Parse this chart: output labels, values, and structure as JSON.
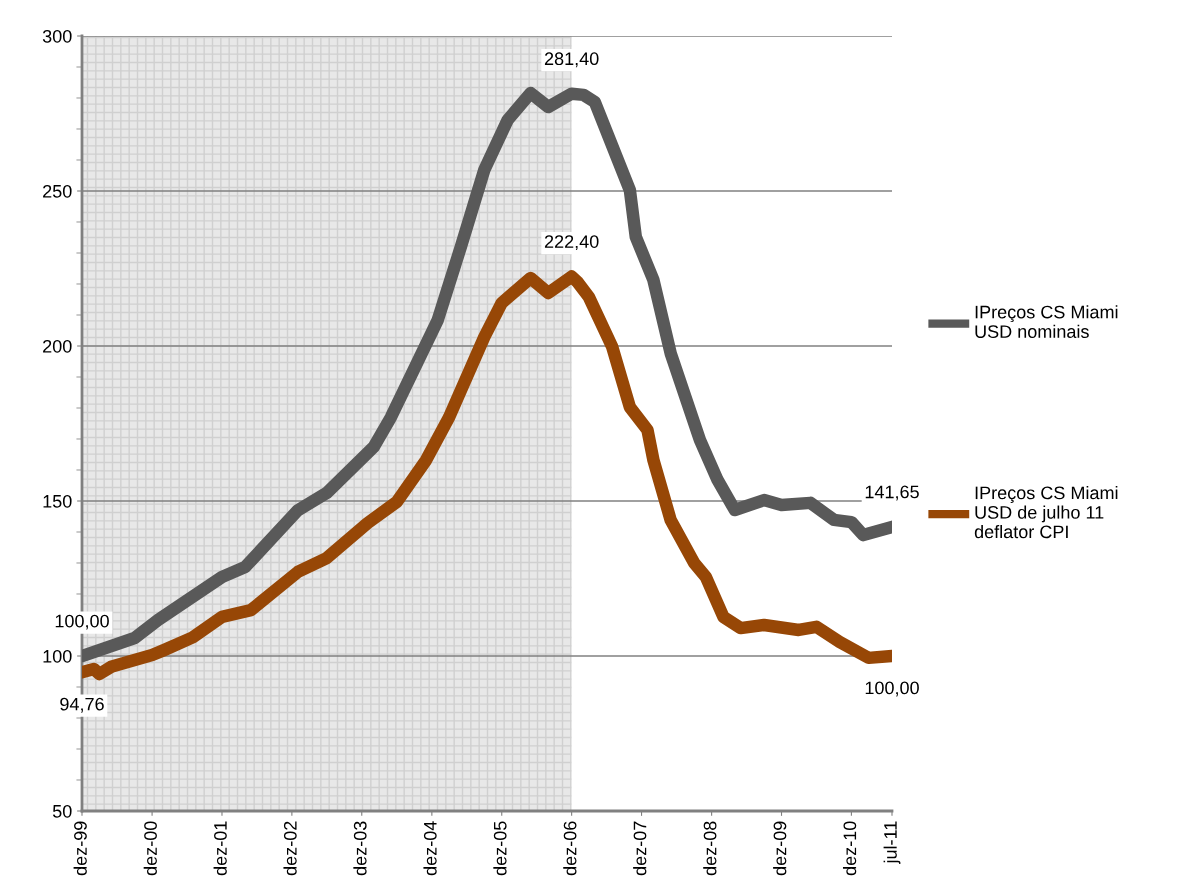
{
  "chart_data": {
    "type": "line",
    "xlim": [
      "1999-12",
      "2011-07"
    ],
    "xticks": [
      {
        "value": "1999-12",
        "label": "dez-99"
      },
      {
        "value": "2000-12",
        "label": "dez-00"
      },
      {
        "value": "2001-12",
        "label": "dez-01"
      },
      {
        "value": "2002-12",
        "label": "dez-02"
      },
      {
        "value": "2003-12",
        "label": "dez-03"
      },
      {
        "value": "2004-12",
        "label": "dez-04"
      },
      {
        "value": "2005-12",
        "label": "dez-05"
      },
      {
        "value": "2006-12",
        "label": "dez-06"
      },
      {
        "value": "2007-12",
        "label": "dez-07"
      },
      {
        "value": "2008-12",
        "label": "dez-08"
      },
      {
        "value": "2009-12",
        "label": "dez-09"
      },
      {
        "value": "2010-12",
        "label": "dez-10"
      },
      {
        "value": "2011-07",
        "label": "jul-11"
      }
    ],
    "ylim": [
      50,
      300
    ],
    "yticks": [
      50,
      100,
      150,
      200,
      250,
      300
    ],
    "grid": "y",
    "legend": "right",
    "line_style": "solid",
    "bands": [
      {
        "axis": "x",
        "from": "1999-12",
        "to": "2006-12",
        "color": "#e8e8e8"
      }
    ],
    "series": [
      {
        "name": "IPreços CS Miami USD nominais",
        "color": "#595959",
        "x": [
          "1999-12",
          "2000-09",
          "2001-01",
          "2001-12",
          "2002-04",
          "2003-01",
          "2003-06",
          "2004-02",
          "2004-05",
          "2005-01",
          "2005-05",
          "2005-09",
          "2006-01",
          "2006-05",
          "2006-08",
          "2006-12",
          "2007-02",
          "2007-04",
          "2007-10",
          "2007-11",
          "2008-02",
          "2008-05",
          "2008-10",
          "2009-01",
          "2009-04",
          "2009-09",
          "2009-12",
          "2010-05",
          "2010-09",
          "2010-12",
          "2011-02",
          "2011-07"
        ],
        "values": [
          100.0,
          105.8,
          111.6,
          125.5,
          128.7,
          147,
          152.6,
          167.4,
          177,
          208.4,
          231.9,
          256.8,
          272.9,
          281.6,
          277.1,
          281.4,
          281,
          278.7,
          250.3,
          235.2,
          221.3,
          197.7,
          169.7,
          156.8,
          147.1,
          150.3,
          148.7,
          149.4,
          143.9,
          143.2,
          139,
          141.65
        ],
        "value_labels": [
          "100,00",
          null,
          null,
          null,
          null,
          null,
          null,
          null,
          null,
          null,
          null,
          null,
          null,
          null,
          null,
          "281,40",
          null,
          null,
          null,
          null,
          null,
          null,
          null,
          null,
          null,
          null,
          null,
          null,
          null,
          null,
          null,
          "141,65"
        ]
      },
      {
        "name": "IPreços CS Miami USD de julho 11 deflator CPI",
        "color": "#974706",
        "x": [
          "1999-12",
          "2000-02",
          "2000-03",
          "2000-05",
          "2000-12",
          "2001-02",
          "2001-07",
          "2001-12",
          "2002-05",
          "2003-01",
          "2003-06",
          "2004-01",
          "2004-06",
          "2004-11",
          "2005-03",
          "2005-09",
          "2005-12",
          "2006-05",
          "2006-08",
          "2006-12",
          "2007-01",
          "2007-03",
          "2007-07",
          "2007-10",
          "2008-01",
          "2008-02",
          "2008-05",
          "2008-09",
          "2008-11",
          "2009-02",
          "2009-05",
          "2009-09",
          "2010-03",
          "2010-06",
          "2010-10",
          "2011-03",
          "2011-07"
        ],
        "values": [
          94.76,
          95.8,
          94.2,
          96.5,
          100.3,
          101.9,
          106,
          112.6,
          114.8,
          127.1,
          131.6,
          142.9,
          149.7,
          163.2,
          177,
          202.9,
          213.9,
          221.9,
          217.1,
          222.4,
          220.6,
          215.8,
          199.7,
          180.3,
          172.9,
          163.2,
          143.9,
          130,
          125.5,
          112.6,
          109,
          110,
          108.4,
          109.4,
          104.5,
          99.4,
          100.0
        ],
        "value_labels": [
          "94,76",
          null,
          null,
          null,
          null,
          null,
          null,
          null,
          null,
          null,
          null,
          null,
          null,
          null,
          null,
          null,
          null,
          null,
          null,
          "222,40",
          null,
          null,
          null,
          null,
          null,
          null,
          null,
          null,
          null,
          null,
          null,
          null,
          null,
          null,
          null,
          null,
          "100,00"
        ]
      }
    ]
  }
}
